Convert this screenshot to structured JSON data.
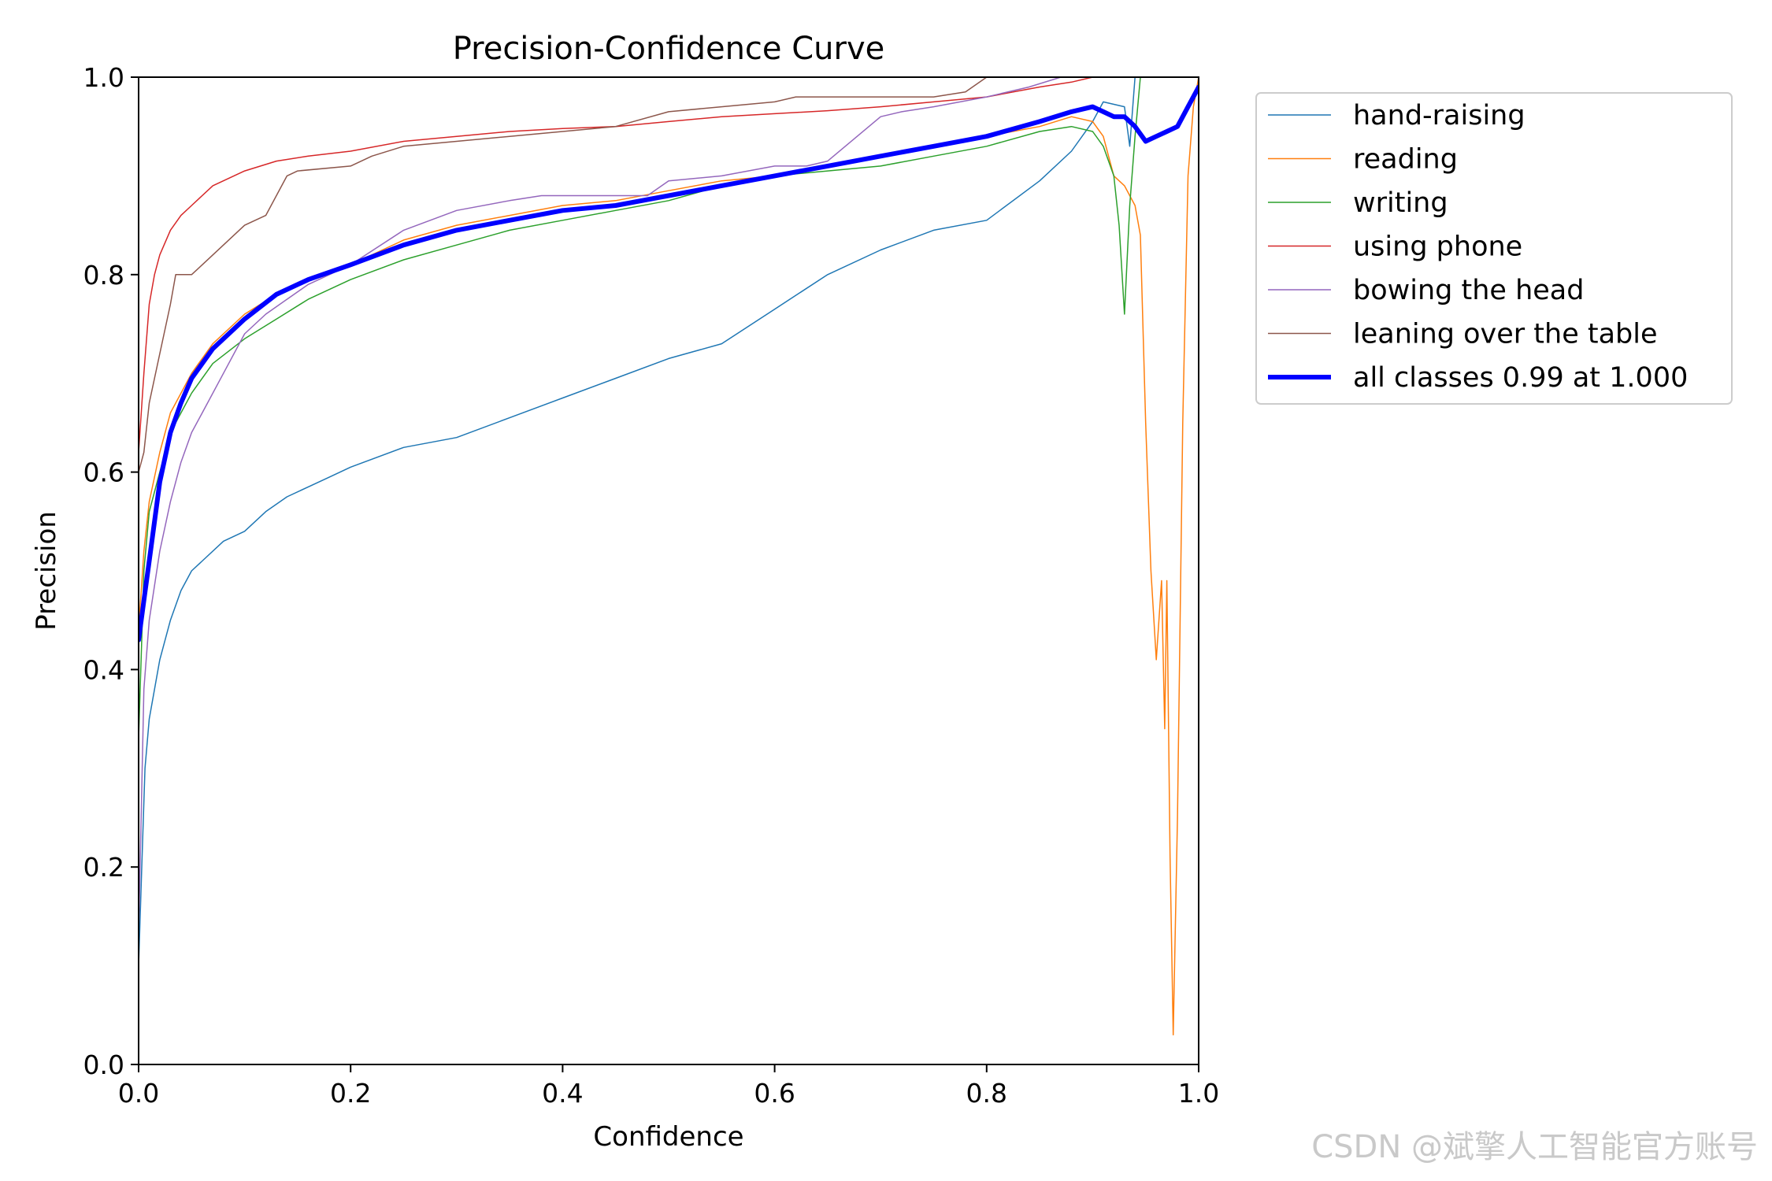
{
  "chart_data": {
    "type": "line",
    "title": "Precision-Confidence Curve",
    "xlabel": "Confidence",
    "ylabel": "Precision",
    "xlim": [
      0,
      1
    ],
    "ylim": [
      0,
      1
    ],
    "xticks": [
      0.0,
      0.2,
      0.4,
      0.6,
      0.8,
      1.0
    ],
    "yticks": [
      0.0,
      0.2,
      0.4,
      0.6,
      0.8,
      1.0
    ],
    "xtick_labels": [
      "0.0",
      "0.2",
      "0.4",
      "0.6",
      "0.8",
      "1.0"
    ],
    "ytick_labels": [
      "0.0",
      "0.2",
      "0.4",
      "0.6",
      "0.8",
      "1.0"
    ],
    "grid": false,
    "legend_position": "outside-top-right",
    "series": [
      {
        "name": "hand-raising",
        "color": "#1f77b4",
        "width": 1.5,
        "x": [
          0.0,
          0.003,
          0.006,
          0.01,
          0.015,
          0.02,
          0.03,
          0.04,
          0.05,
          0.06,
          0.08,
          0.1,
          0.12,
          0.14,
          0.16,
          0.18,
          0.2,
          0.25,
          0.3,
          0.35,
          0.4,
          0.45,
          0.5,
          0.55,
          0.6,
          0.65,
          0.7,
          0.75,
          0.8,
          0.85,
          0.88,
          0.9,
          0.91,
          0.93,
          0.935,
          0.94
        ],
        "y": [
          0.1,
          0.2,
          0.3,
          0.35,
          0.38,
          0.41,
          0.45,
          0.48,
          0.5,
          0.51,
          0.53,
          0.54,
          0.56,
          0.575,
          0.585,
          0.595,
          0.605,
          0.625,
          0.635,
          0.655,
          0.675,
          0.695,
          0.715,
          0.73,
          0.765,
          0.8,
          0.825,
          0.845,
          0.855,
          0.895,
          0.925,
          0.955,
          0.975,
          0.97,
          0.93,
          1.0
        ]
      },
      {
        "name": "reading",
        "color": "#ff7f0e",
        "width": 1.5,
        "x": [
          0.0,
          0.005,
          0.01,
          0.02,
          0.03,
          0.05,
          0.07,
          0.1,
          0.13,
          0.16,
          0.2,
          0.25,
          0.3,
          0.35,
          0.4,
          0.45,
          0.5,
          0.55,
          0.6,
          0.65,
          0.7,
          0.75,
          0.8,
          0.85,
          0.88,
          0.9,
          0.91,
          0.92,
          0.93,
          0.94,
          0.945,
          0.95,
          0.955,
          0.96,
          0.965,
          0.968,
          0.97,
          0.973,
          0.976,
          0.98,
          0.985,
          0.99,
          0.995,
          1.0
        ],
        "y": [
          0.44,
          0.52,
          0.57,
          0.62,
          0.66,
          0.7,
          0.73,
          0.76,
          0.78,
          0.795,
          0.81,
          0.835,
          0.85,
          0.86,
          0.87,
          0.875,
          0.885,
          0.895,
          0.9,
          0.91,
          0.92,
          0.93,
          0.94,
          0.95,
          0.96,
          0.955,
          0.94,
          0.9,
          0.89,
          0.87,
          0.84,
          0.65,
          0.5,
          0.41,
          0.49,
          0.34,
          0.49,
          0.21,
          0.03,
          0.25,
          0.65,
          0.9,
          0.97,
          1.0
        ]
      },
      {
        "name": "writing",
        "color": "#2ca02c",
        "width": 1.5,
        "x": [
          0.0,
          0.005,
          0.01,
          0.02,
          0.03,
          0.05,
          0.07,
          0.1,
          0.13,
          0.16,
          0.2,
          0.25,
          0.3,
          0.35,
          0.4,
          0.45,
          0.5,
          0.55,
          0.6,
          0.65,
          0.7,
          0.75,
          0.8,
          0.85,
          0.88,
          0.9,
          0.91,
          0.92,
          0.925,
          0.93,
          0.935,
          0.94,
          0.945,
          0.95,
          1.0
        ],
        "y": [
          0.33,
          0.5,
          0.56,
          0.6,
          0.64,
          0.68,
          0.71,
          0.735,
          0.755,
          0.775,
          0.795,
          0.815,
          0.83,
          0.845,
          0.855,
          0.865,
          0.875,
          0.89,
          0.9,
          0.905,
          0.91,
          0.92,
          0.93,
          0.945,
          0.95,
          0.945,
          0.93,
          0.9,
          0.85,
          0.76,
          0.87,
          0.94,
          1.0,
          1.0,
          1.0
        ]
      },
      {
        "name": "using phone",
        "color": "#d62728",
        "width": 1.5,
        "x": [
          0.0,
          0.005,
          0.01,
          0.015,
          0.02,
          0.03,
          0.04,
          0.05,
          0.07,
          0.1,
          0.13,
          0.16,
          0.2,
          0.25,
          0.3,
          0.35,
          0.4,
          0.45,
          0.5,
          0.55,
          0.6,
          0.65,
          0.7,
          0.75,
          0.8,
          0.85,
          0.88,
          0.9,
          0.91
        ],
        "y": [
          0.62,
          0.7,
          0.77,
          0.8,
          0.82,
          0.845,
          0.86,
          0.87,
          0.89,
          0.905,
          0.915,
          0.92,
          0.925,
          0.935,
          0.94,
          0.945,
          0.948,
          0.95,
          0.955,
          0.96,
          0.963,
          0.966,
          0.97,
          0.975,
          0.98,
          0.99,
          0.995,
          1.0,
          1.0
        ]
      },
      {
        "name": "bowing the head",
        "color": "#9467bd",
        "width": 1.5,
        "x": [
          0.0,
          0.005,
          0.01,
          0.02,
          0.03,
          0.04,
          0.05,
          0.06,
          0.08,
          0.1,
          0.12,
          0.14,
          0.16,
          0.2,
          0.25,
          0.3,
          0.35,
          0.38,
          0.4,
          0.45,
          0.48,
          0.5,
          0.55,
          0.6,
          0.63,
          0.65,
          0.7,
          0.72,
          0.75,
          0.8,
          0.84,
          0.87,
          0.88
        ],
        "y": [
          0.13,
          0.38,
          0.45,
          0.52,
          0.57,
          0.61,
          0.64,
          0.66,
          0.7,
          0.74,
          0.76,
          0.775,
          0.79,
          0.81,
          0.845,
          0.865,
          0.875,
          0.88,
          0.88,
          0.88,
          0.88,
          0.895,
          0.9,
          0.91,
          0.91,
          0.915,
          0.96,
          0.965,
          0.97,
          0.98,
          0.99,
          1.0,
          1.0
        ]
      },
      {
        "name": "leaning over the table",
        "color": "#8c564b",
        "width": 1.5,
        "x": [
          0.0,
          0.005,
          0.01,
          0.02,
          0.03,
          0.035,
          0.05,
          0.06,
          0.08,
          0.1,
          0.12,
          0.14,
          0.15,
          0.2,
          0.22,
          0.25,
          0.3,
          0.35,
          0.4,
          0.45,
          0.5,
          0.55,
          0.6,
          0.62,
          0.65,
          0.7,
          0.75,
          0.78,
          0.8,
          0.81
        ],
        "y": [
          0.6,
          0.62,
          0.67,
          0.72,
          0.77,
          0.8,
          0.8,
          0.81,
          0.83,
          0.85,
          0.86,
          0.9,
          0.905,
          0.91,
          0.92,
          0.93,
          0.935,
          0.94,
          0.945,
          0.95,
          0.965,
          0.97,
          0.975,
          0.98,
          0.98,
          0.98,
          0.98,
          0.985,
          1.0,
          1.0
        ]
      },
      {
        "name": "all classes 0.99 at 1.000",
        "color": "#0000ff",
        "width": 6,
        "x": [
          0.0,
          0.005,
          0.01,
          0.015,
          0.02,
          0.03,
          0.04,
          0.05,
          0.07,
          0.1,
          0.13,
          0.16,
          0.2,
          0.25,
          0.3,
          0.35,
          0.4,
          0.45,
          0.5,
          0.55,
          0.6,
          0.65,
          0.7,
          0.75,
          0.8,
          0.85,
          0.88,
          0.9,
          0.91,
          0.92,
          0.93,
          0.94,
          0.95,
          0.96,
          0.97,
          0.98,
          0.99,
          1.0
        ],
        "y": [
          0.43,
          0.47,
          0.51,
          0.55,
          0.59,
          0.64,
          0.67,
          0.695,
          0.725,
          0.755,
          0.78,
          0.795,
          0.81,
          0.83,
          0.845,
          0.855,
          0.865,
          0.87,
          0.88,
          0.89,
          0.9,
          0.91,
          0.92,
          0.93,
          0.94,
          0.955,
          0.965,
          0.97,
          0.965,
          0.96,
          0.96,
          0.95,
          0.935,
          0.94,
          0.945,
          0.95,
          0.97,
          0.99
        ]
      }
    ]
  },
  "watermark": "CSDN @斌擎人工智能官方账号"
}
